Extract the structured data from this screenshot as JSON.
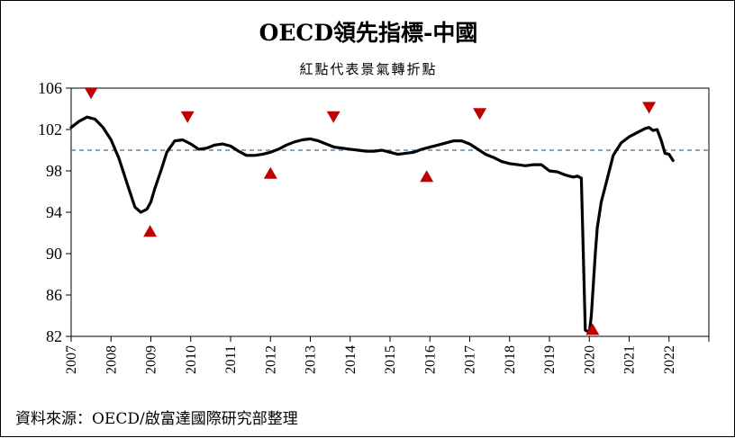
{
  "title": "OECD領先指標-中國",
  "subtitle": "紅點代表景氣轉折點",
  "source": "資料來源：OECD/啟富達國際研究部整理",
  "chart_data": {
    "type": "line",
    "title": "OECD領先指標-中國",
    "subtitle": "紅點代表景氣轉折點",
    "xlabel": "",
    "ylabel": "",
    "x_tick_labels": [
      "2007",
      "2008",
      "2009",
      "2010",
      "2011",
      "2012",
      "2013",
      "2014",
      "2015",
      "2016",
      "2017",
      "2018",
      "2019",
      "2020",
      "2021",
      "2022"
    ],
    "ylim": [
      82,
      106
    ],
    "yticks": [
      82,
      86,
      90,
      94,
      98,
      102,
      106
    ],
    "grid": false,
    "colors": {
      "line": "#000000",
      "reference": "#3a6d9a",
      "markers": "#c00000"
    },
    "reference_line": {
      "value": 100,
      "style": "dashed"
    },
    "series": [
      {
        "x": [
          2007.0,
          2007.2,
          2007.4,
          2007.6,
          2007.8,
          2008.0,
          2008.2,
          2008.4,
          2008.6,
          2008.75,
          2008.9,
          2009.0,
          2009.1,
          2009.25,
          2009.4,
          2009.6,
          2009.8,
          2010.0,
          2010.2,
          2010.4,
          2010.6,
          2010.8,
          2011.0,
          2011.2,
          2011.4,
          2011.6,
          2011.8,
          2012.0,
          2012.2,
          2012.4,
          2012.6,
          2012.8,
          2013.0,
          2013.2,
          2013.4,
          2013.6,
          2013.8,
          2014.0,
          2014.2,
          2014.4,
          2014.6,
          2014.8,
          2015.0,
          2015.2,
          2015.4,
          2015.6,
          2015.8,
          2016.0,
          2016.2,
          2016.4,
          2016.6,
          2016.8,
          2017.0,
          2017.2,
          2017.4,
          2017.6,
          2017.8,
          2018.0,
          2018.2,
          2018.4,
          2018.6,
          2018.8,
          2019.0,
          2019.2,
          2019.4,
          2019.5,
          2019.6,
          2019.7,
          2019.8,
          2019.9,
          2020.0,
          2020.05,
          2020.1,
          2020.15,
          2020.2,
          2020.3,
          2020.4,
          2020.5,
          2020.6,
          2020.8,
          2021.0,
          2021.2,
          2021.4,
          2021.5,
          2021.6,
          2021.7,
          2021.8,
          2021.9,
          2022.0,
          2022.1
        ],
        "values": [
          102.2,
          102.8,
          103.2,
          103.0,
          102.2,
          101.0,
          99.2,
          96.8,
          94.5,
          94.0,
          94.3,
          95.0,
          96.3,
          98.0,
          99.8,
          100.9,
          101.0,
          100.6,
          100.1,
          100.2,
          100.5,
          100.6,
          100.4,
          99.9,
          99.5,
          99.5,
          99.6,
          99.8,
          100.1,
          100.5,
          100.8,
          101.0,
          101.1,
          100.9,
          100.6,
          100.3,
          100.2,
          100.1,
          100.0,
          99.9,
          99.9,
          100.0,
          99.8,
          99.6,
          99.7,
          99.8,
          100.1,
          100.3,
          100.5,
          100.7,
          100.9,
          100.9,
          100.6,
          100.1,
          99.6,
          99.3,
          98.9,
          98.7,
          98.6,
          98.5,
          98.6,
          98.6,
          98.0,
          97.9,
          97.6,
          97.5,
          97.4,
          97.5,
          97.3,
          82.6,
          82.4,
          84.0,
          87.0,
          90.0,
          92.5,
          95.0,
          96.5,
          98.0,
          99.5,
          100.7,
          101.3,
          101.7,
          102.1,
          102.2,
          101.9,
          102.0,
          101.0,
          99.7,
          99.6,
          99.0
        ]
      }
    ],
    "turning_points": [
      {
        "type": "peak",
        "x": 2007.5,
        "y": 105.5
      },
      {
        "type": "trough",
        "x": 2008.98,
        "y": 92.2
      },
      {
        "type": "peak",
        "x": 2009.92,
        "y": 103.2
      },
      {
        "type": "trough",
        "x": 2012.0,
        "y": 97.8
      },
      {
        "type": "peak",
        "x": 2013.58,
        "y": 103.2
      },
      {
        "type": "trough",
        "x": 2015.92,
        "y": 97.5
      },
      {
        "type": "peak",
        "x": 2017.25,
        "y": 103.5
      },
      {
        "type": "trough",
        "x": 2020.08,
        "y": 82.7
      },
      {
        "type": "peak",
        "x": 2021.5,
        "y": 104.1
      }
    ]
  }
}
